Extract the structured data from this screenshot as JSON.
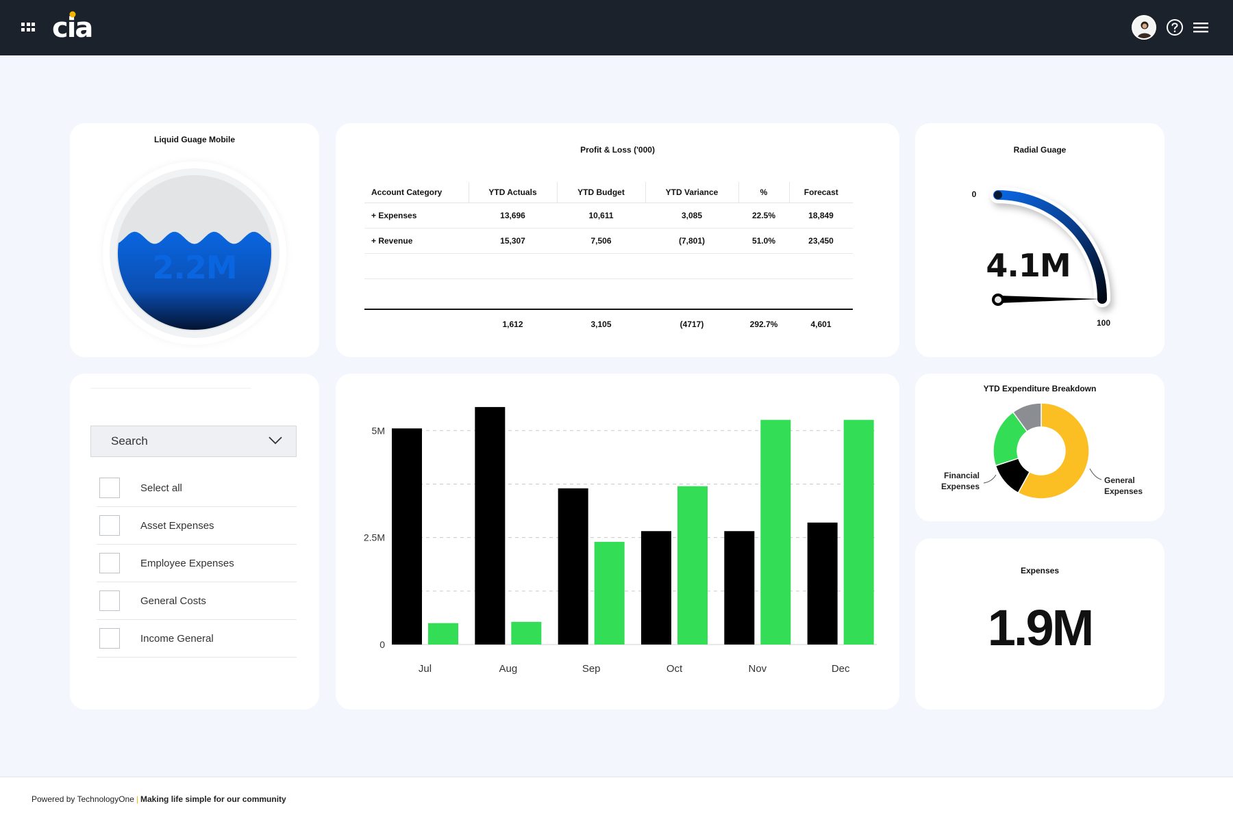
{
  "header": {
    "logo_text": "cia",
    "apps_icon": "apps-grid-icon",
    "avatar_icon": "user-avatar-icon",
    "help_icon": "help-circle-icon",
    "menu_icon": "hamburger-menu-icon"
  },
  "liquid_gauge": {
    "title": "Liquid Guage Mobile",
    "value": "2.2M",
    "fill_fraction": 0.6,
    "fill_color": "#0a66e0"
  },
  "profit_loss": {
    "title": "Profit & Loss ('000)",
    "columns": [
      "Account Category",
      "YTD Actuals",
      "YTD Budget",
      "YTD Variance",
      "%",
      "Forecast"
    ],
    "rows": [
      [
        "+ Expenses",
        "13,696",
        "10,611",
        "3,085",
        "22.5%",
        "18,849"
      ],
      [
        "+ Revenue",
        "15,307",
        "7,506",
        "(7,801)",
        "51.0%",
        "23,450"
      ]
    ],
    "totals": [
      "",
      "1,612",
      "3,105",
      "(4717)",
      "292.7%",
      "4,601"
    ]
  },
  "radial_gauge": {
    "title": "Radial Guage",
    "value": "4.1M",
    "min_label": "0",
    "max_label": "100"
  },
  "filter": {
    "search_label": "Search",
    "chevron_icon": "chevron-down-icon",
    "items": [
      {
        "label": "Select all"
      },
      {
        "label": "Asset Expenses"
      },
      {
        "label": "Employee Expenses"
      },
      {
        "label": "General Costs"
      },
      {
        "label": "Income General"
      }
    ]
  },
  "chart_data": [
    {
      "type": "bar",
      "categories": [
        "Jul",
        "Aug",
        "Sep",
        "Oct",
        "Nov",
        "Dec"
      ],
      "series": [
        {
          "values": [
            5.05,
            5.55,
            3.65,
            2.65,
            2.65,
            2.85
          ],
          "color": "#000000"
        },
        {
          "values": [
            0.5,
            0.53,
            2.4,
            3.7,
            5.25,
            5.25
          ],
          "color": "#33dd55"
        }
      ],
      "ylim": [
        0,
        5.9
      ],
      "yticks": [
        {
          "value": 0,
          "label": "0"
        },
        {
          "value": 2.5,
          "label": "2.5M"
        },
        {
          "value": 5,
          "label": "5M"
        }
      ],
      "grid": true
    },
    {
      "type": "pie",
      "title": "YTD Expenditure Breakdown",
      "slices": [
        {
          "label": "General Expenses",
          "value": 58,
          "color": "#fbbf24"
        },
        {
          "label": "",
          "value": 12,
          "color": "#000000"
        },
        {
          "label": "Financial Expenses",
          "value": 20,
          "color": "#33dd55"
        },
        {
          "label": "",
          "value": 10,
          "color": "#8a8d91"
        }
      ]
    }
  ],
  "expenses": {
    "title": "Expenses",
    "value": "1.9M"
  },
  "footer": {
    "powered_by": "Powered by TechnologyOne",
    "separator": "|",
    "tagline": "Making life simple for our community"
  }
}
